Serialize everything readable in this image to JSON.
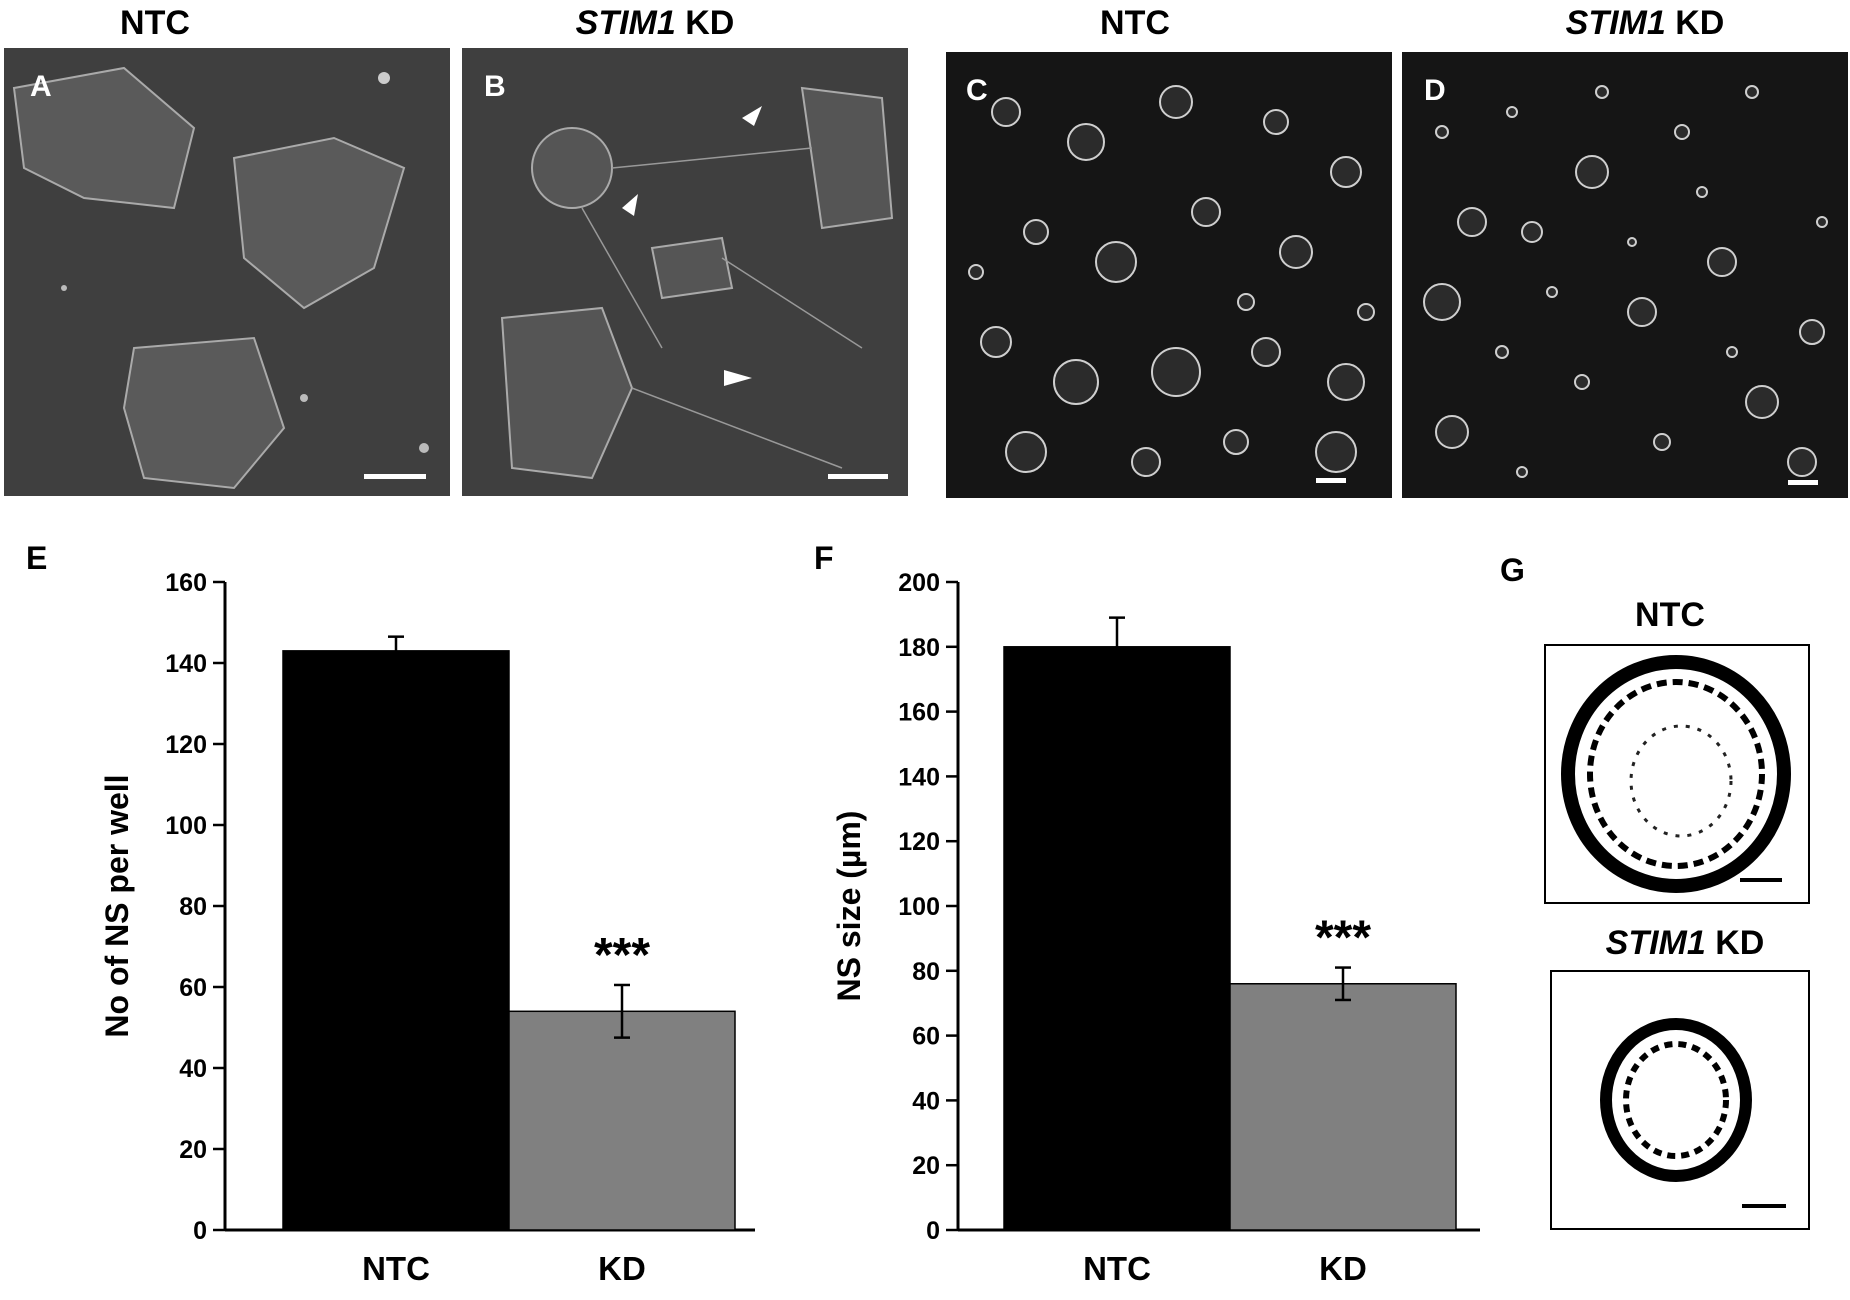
{
  "headers": {
    "a": "NTC",
    "b_italic": "STIM1",
    "b_rest": " KD",
    "c": "NTC",
    "d_italic": "STIM1",
    "d_rest": " KD"
  },
  "panels": {
    "A": "A",
    "B": "B",
    "C": "C",
    "D": "D",
    "E": "E",
    "F": "F",
    "G": "G"
  },
  "panel_g": {
    "ntc_title": "NTC",
    "kd_title_italic": "STIM1",
    "kd_title_rest": " KD"
  },
  "chart_data": [
    {
      "type": "bar",
      "panel": "E",
      "categories": [
        "NTC",
        "KD"
      ],
      "values": [
        143,
        54
      ],
      "errors": [
        3.5,
        6.5
      ],
      "colors": [
        "#000000",
        "#808080"
      ],
      "annotations": [
        "",
        "***"
      ],
      "ylabel": "No of NS per well",
      "ylim": [
        0,
        160
      ],
      "yticks": [
        0,
        20,
        40,
        60,
        80,
        100,
        120,
        140,
        160
      ]
    },
    {
      "type": "bar",
      "panel": "F",
      "categories": [
        "NTC",
        "KD"
      ],
      "values": [
        180,
        76
      ],
      "errors": [
        9,
        5
      ],
      "colors": [
        "#000000",
        "#808080"
      ],
      "annotations": [
        "",
        "***"
      ],
      "ylabel": "NS size (µm)",
      "ylim": [
        0,
        200
      ],
      "yticks": [
        0,
        20,
        40,
        60,
        80,
        100,
        120,
        140,
        160,
        180,
        200
      ]
    }
  ]
}
